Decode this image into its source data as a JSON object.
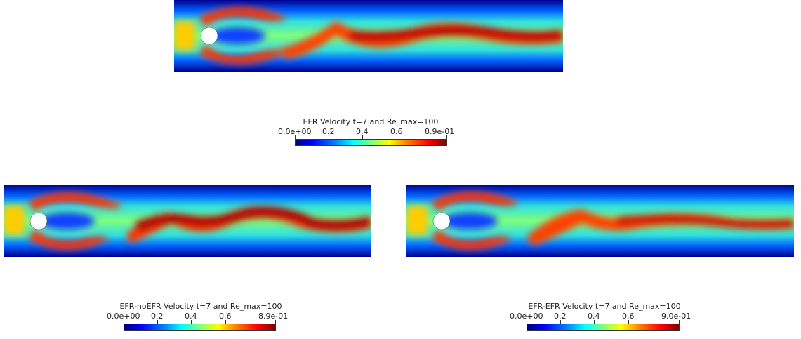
{
  "colors": {
    "low": "#00007f",
    "mid": "#7fff7f",
    "high": "#7f0000"
  },
  "legends": {
    "top": {
      "title": "EFR Velocity t=7 and Re_max=100",
      "ticks": [
        "0.0e+00",
        "0.2",
        "0.4",
        "0.6",
        "8.9e-01"
      ]
    },
    "bottom_left": {
      "title": "EFR-noEFR Velocity t=7   and Re_max=100",
      "ticks": [
        "0.0e+00",
        "0.2",
        "0.4",
        "0.6",
        "8.9e-01"
      ]
    },
    "bottom_right": {
      "title": "EFR-EFR  Velocity t=7   and Re_max=100",
      "ticks": [
        "0.0e+00",
        "0.2",
        "0.4",
        "0.6",
        "9.0e-01"
      ]
    }
  }
}
